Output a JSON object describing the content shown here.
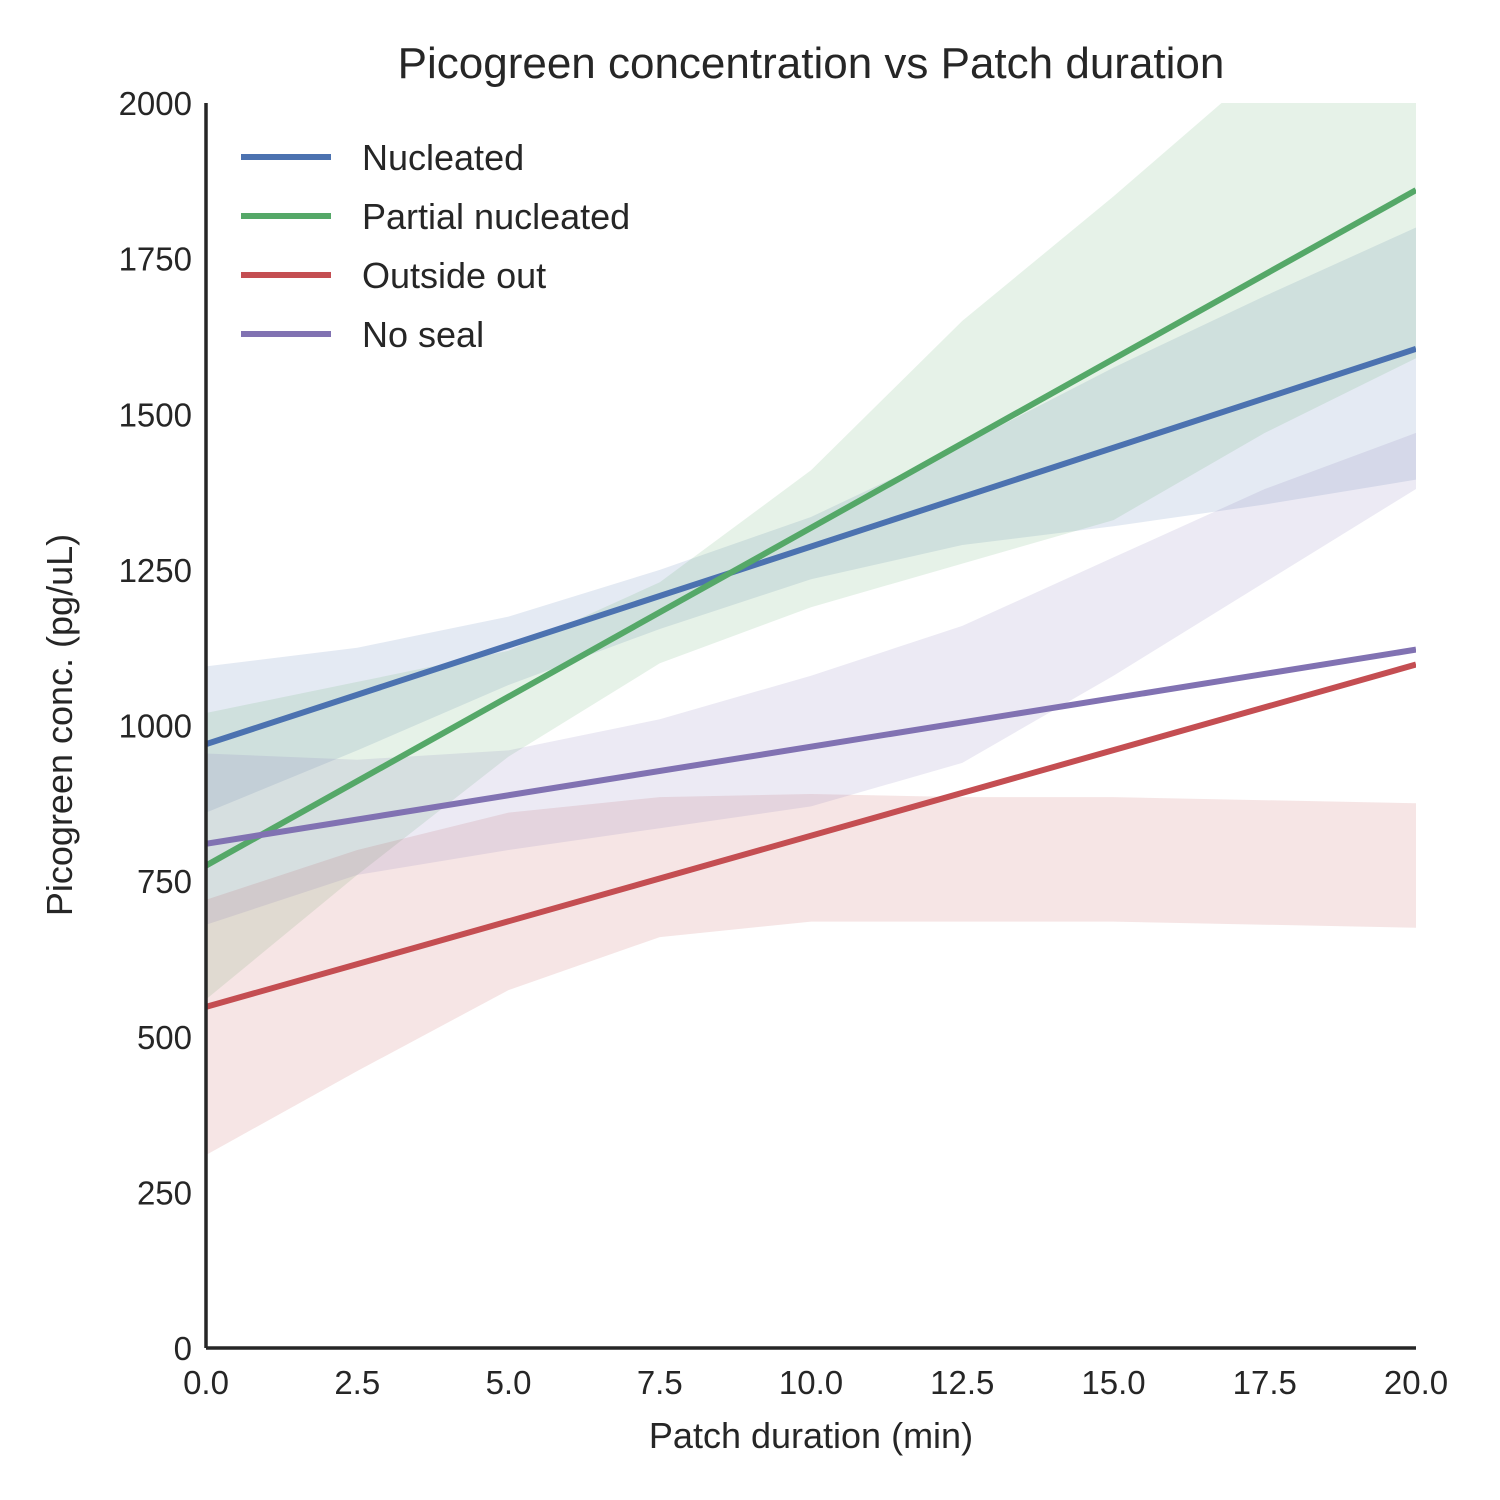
{
  "chart_data": {
    "type": "line",
    "title": "Picogreen concentration vs Patch duration",
    "xlabel": "Patch duration (min)",
    "ylabel": "Picogreen conc. (pg/uL)",
    "xlim": [
      0,
      20
    ],
    "ylim": [
      0,
      2000
    ],
    "xticks": [
      0,
      2.5,
      5,
      7.5,
      10,
      12.5,
      15,
      17.5,
      20
    ],
    "xtick_labels": [
      "0.0",
      "2.5",
      "5.0",
      "7.5",
      "10.0",
      "12.5",
      "15.0",
      "17.5",
      "20.0"
    ],
    "yticks": [
      0,
      250,
      500,
      750,
      1000,
      1250,
      1500,
      1750,
      2000
    ],
    "ytick_labels": [
      "0",
      "250",
      "500",
      "750",
      "1000",
      "1250",
      "1500",
      "1750",
      "2000"
    ],
    "grid": false,
    "legend_position": "top-left",
    "series": [
      {
        "name": "Nucleated",
        "color": "#4c72b0",
        "x": [
          0,
          20
        ],
        "y": [
          970,
          1605
        ],
        "band": {
          "x": [
            0,
            2.5,
            5,
            7.5,
            10,
            12.5,
            15,
            17.5,
            20
          ],
          "lower": [
            860,
            960,
            1065,
            1155,
            1235,
            1290,
            1320,
            1355,
            1395
          ],
          "upper": [
            1095,
            1125,
            1175,
            1250,
            1335,
            1450,
            1575,
            1690,
            1800
          ]
        }
      },
      {
        "name": "Partial nucleated",
        "color": "#55a868",
        "x": [
          0,
          20
        ],
        "y": [
          775,
          1860
        ],
        "band": {
          "x": [
            0,
            2.5,
            5,
            7.5,
            10,
            12.5,
            15,
            17.5,
            20
          ],
          "lower": [
            560,
            760,
            950,
            1100,
            1190,
            1260,
            1330,
            1470,
            1590
          ],
          "upper": [
            1020,
            1070,
            1120,
            1230,
            1410,
            1650,
            1850,
            2060,
            2200
          ]
        }
      },
      {
        "name": "Outside out",
        "color": "#c44e52",
        "x": [
          0,
          20
        ],
        "y": [
          548,
          1098
        ],
        "band": {
          "x": [
            0,
            2.5,
            5,
            7.5,
            10,
            12.5,
            15,
            17.5,
            20
          ],
          "lower": [
            310,
            445,
            575,
            660,
            685,
            685,
            685,
            680,
            675
          ],
          "upper": [
            720,
            800,
            860,
            885,
            890,
            885,
            885,
            880,
            875
          ]
        }
      },
      {
        "name": "No seal",
        "color": "#8172b2",
        "x": [
          0,
          20
        ],
        "y": [
          810,
          1122
        ],
        "band": {
          "x": [
            0,
            2.5,
            5,
            7.5,
            10,
            12.5,
            15,
            17.5,
            20
          ],
          "lower": [
            680,
            760,
            800,
            835,
            870,
            940,
            1080,
            1230,
            1380
          ],
          "upper": [
            955,
            945,
            960,
            1010,
            1080,
            1160,
            1270,
            1380,
            1470
          ]
        }
      }
    ]
  }
}
